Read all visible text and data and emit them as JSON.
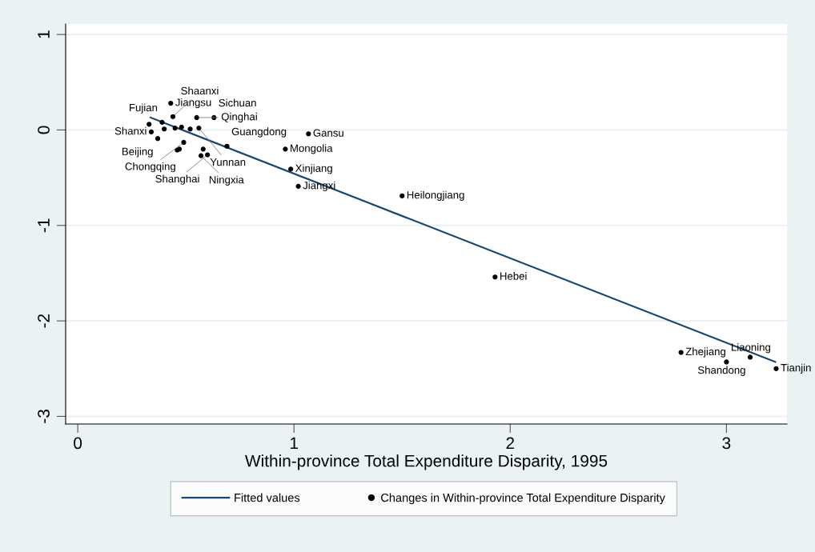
{
  "chart_data": {
    "type": "scatter",
    "xlabel": "Within-province Total Expenditure Disparity, 1995",
    "xlim": [
      -0.056,
      3.28
    ],
    "xticks": [
      0,
      1,
      2,
      3
    ],
    "ylim": [
      -3.08,
      1.11
    ],
    "yticks": [
      -3,
      -2,
      -1,
      0,
      1
    ],
    "grid": "y",
    "legend": "bottom",
    "series": [
      {
        "name": "Fitted values",
        "type": "line",
        "color": "#1a476f",
        "x": [
          0.337,
          3.226
        ],
        "values": [
          0.13,
          -2.43
        ]
      },
      {
        "name": "Changes in Within-province Total Expenditure Disparity",
        "marker": "circle",
        "color": "#000000",
        "x": [
          0.43,
          0.44,
          0.55,
          0.63,
          0.39,
          0.33,
          0.4,
          0.45,
          0.48,
          0.52,
          0.56,
          0.34,
          0.37,
          0.49,
          0.47,
          0.46,
          0.58,
          0.69,
          0.96,
          0.57,
          0.6,
          1.067,
          0.985,
          1.02,
          1.5,
          1.93,
          2.79,
          3.0,
          3.11,
          3.23
        ],
        "values": [
          0.28,
          0.14,
          0.13,
          0.13,
          0.08,
          0.06,
          0.01,
          0.02,
          0.03,
          0.01,
          0.02,
          -0.02,
          -0.09,
          -0.13,
          -0.2,
          -0.21,
          -0.2,
          -0.17,
          -0.2,
          -0.27,
          -0.26,
          -0.04,
          -0.41,
          -0.59,
          -0.69,
          -1.54,
          -2.33,
          -2.43,
          -2.38,
          -2.5
        ]
      }
    ],
    "annotations": [
      {
        "text": "Jiangsu",
        "x": 0.43,
        "y": 0.28
      },
      {
        "text": "Shaanxi",
        "x": 0.44,
        "y": 0.14
      },
      {
        "text": "Qinghai",
        "x": 0.55,
        "y": 0.13
      },
      {
        "text": "Sichuan",
        "x": 0.63,
        "y": 0.13
      },
      {
        "text": "Fujian",
        "x": 0.39,
        "y": 0.08
      },
      {
        "text": "Yunnan",
        "x": 0.56,
        "y": 0.02
      },
      {
        "text": "Shanxi",
        "x": 0.34,
        "y": -0.02
      },
      {
        "text": "Beijing",
        "x": 0.37,
        "y": -0.09
      },
      {
        "text": "Chongqing",
        "x": 0.49,
        "y": -0.13
      },
      {
        "text": "Guangdong",
        "x": 0.69,
        "y": -0.17
      },
      {
        "text": "Mongolia",
        "x": 0.96,
        "y": -0.2
      },
      {
        "text": "Ningxia",
        "x": 0.57,
        "y": -0.27
      },
      {
        "text": "Shanghai",
        "x": 0.6,
        "y": -0.26
      },
      {
        "text": "Gansu",
        "x": 1.067,
        "y": -0.04
      },
      {
        "text": "Xinjiang",
        "x": 0.985,
        "y": -0.41
      },
      {
        "text": "Jiangxi",
        "x": 1.02,
        "y": -0.59
      },
      {
        "text": "Heilongjiang",
        "x": 1.5,
        "y": -0.69
      },
      {
        "text": "Hebei",
        "x": 1.93,
        "y": -1.54
      },
      {
        "text": "Zhejiang",
        "x": 2.79,
        "y": -2.33
      },
      {
        "text": "Liaoning",
        "x": 3.0,
        "y": -2.43
      },
      {
        "text": "Shandong",
        "x": 3.11,
        "y": -2.38
      },
      {
        "text": "Tianjin",
        "x": 3.23,
        "y": -2.5
      }
    ]
  }
}
